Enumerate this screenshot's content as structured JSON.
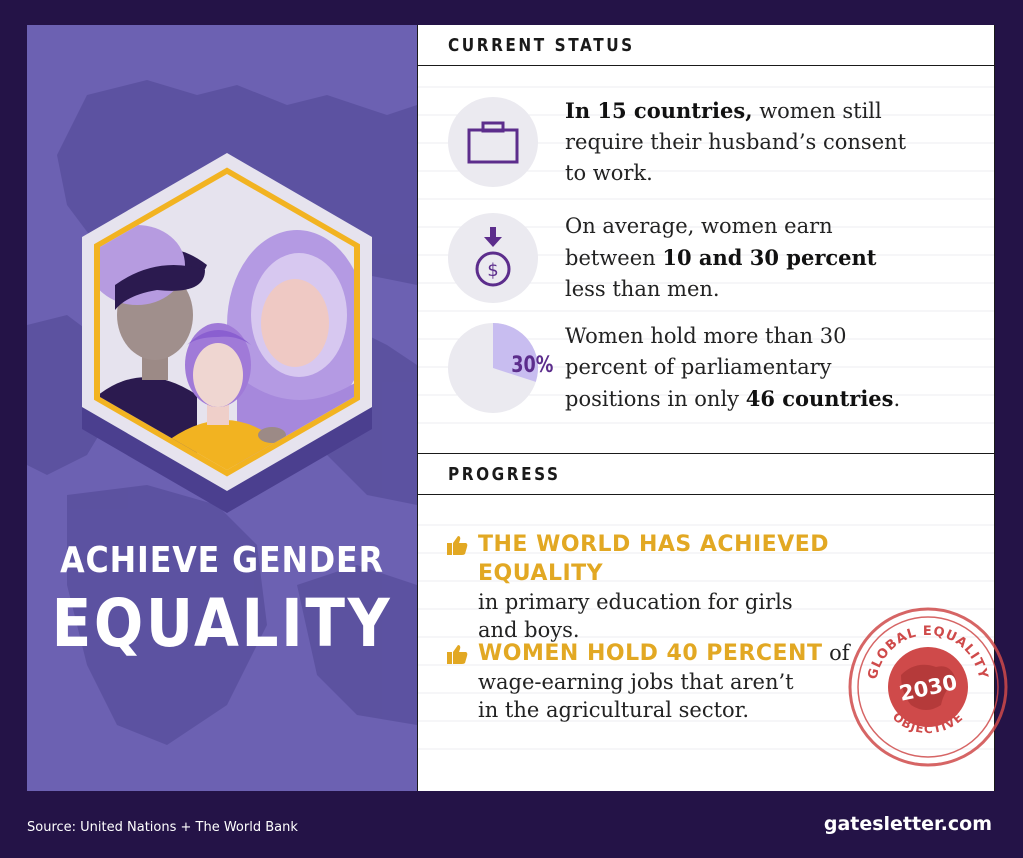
{
  "goal": {
    "line1": "ACHIEVE GENDER",
    "line2": "EQUALITY"
  },
  "current_status": {
    "header": "CURRENT STATUS",
    "items": [
      {
        "icon": "briefcase-icon",
        "bold": "In 15 countries,",
        "text_a": " women still",
        "text_b": "require their husband’s consent",
        "text_c": "to work."
      },
      {
        "icon": "dollar-down-icon",
        "line1": "On average, women earn",
        "pre": "between ",
        "bold": "10 and 30 percent",
        "line3": "less than men."
      },
      {
        "icon": "pie-chart",
        "pct": "30%",
        "pct_value": 30,
        "line1": "Women hold more than 30",
        "line2": "percent of parliamentary",
        "pre": "positions in only ",
        "bold": "46 countries",
        "post": "."
      }
    ]
  },
  "progress": {
    "header": "PROGRESS",
    "items": [
      {
        "icon": "thumbs-up-icon",
        "highlight": "THE WORLD HAS ACHIEVED EQUALITY",
        "line2": " in primary education for girls",
        "line3": "and boys."
      },
      {
        "icon": "thumbs-up-icon",
        "highlight": "WOMEN HOLD 40 PERCENT",
        "after": " of",
        "line2": "wage-earning jobs that aren’t",
        "line3": "in the agricultural sector."
      }
    ]
  },
  "stamp": {
    "top": "GLOBAL EQUALITY",
    "year": "2030",
    "bottom": "OBJECTIVE"
  },
  "footer": {
    "source": "Source: United Nations + The World Bank",
    "site": "gatesletter.com"
  },
  "colors": {
    "background": "#241347",
    "panel": "#6c61b2",
    "accent_gold": "#e2a823",
    "accent_purple": "#5c2d8c",
    "stamp_red": "#cf4a4a"
  }
}
